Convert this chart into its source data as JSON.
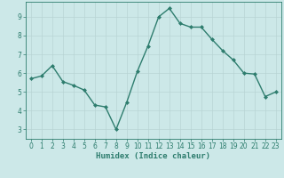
{
  "x": [
    0,
    1,
    2,
    3,
    4,
    5,
    6,
    7,
    8,
    9,
    10,
    11,
    12,
    13,
    14,
    15,
    16,
    17,
    18,
    19,
    20,
    21,
    22,
    23
  ],
  "y": [
    5.7,
    5.85,
    6.4,
    5.55,
    5.35,
    5.1,
    4.3,
    4.2,
    3.0,
    4.45,
    6.1,
    7.45,
    9.0,
    9.45,
    8.65,
    8.45,
    8.45,
    7.8,
    7.2,
    6.7,
    6.0,
    5.95,
    4.75,
    5.0
  ],
  "line_color": "#2e7d6e",
  "marker": "D",
  "marker_size": 2.0,
  "background_color": "#cce8e8",
  "grid_color": "#b8d4d4",
  "axis_color": "#2e7d6e",
  "xlabel": "Humidex (Indice chaleur)",
  "xlabel_fontsize": 6.5,
  "xlim": [
    -0.5,
    23.5
  ],
  "ylim": [
    2.5,
    9.8
  ],
  "yticks": [
    3,
    4,
    5,
    6,
    7,
    8,
    9
  ],
  "xticks": [
    0,
    1,
    2,
    3,
    4,
    5,
    6,
    7,
    8,
    9,
    10,
    11,
    12,
    13,
    14,
    15,
    16,
    17,
    18,
    19,
    20,
    21,
    22,
    23
  ],
  "tick_fontsize": 5.5,
  "line_width": 1.0
}
